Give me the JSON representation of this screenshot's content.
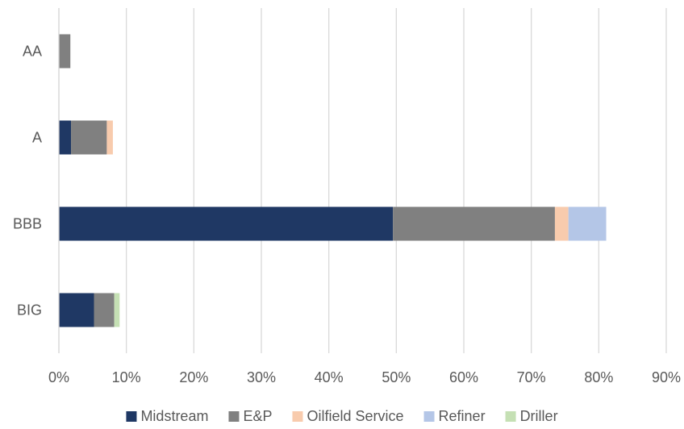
{
  "chart_data": {
    "type": "bar",
    "orientation": "horizontal",
    "stacked": true,
    "title": "",
    "xlabel": "",
    "ylabel": "",
    "categories": [
      "AA",
      "A",
      "BBB",
      "BIG"
    ],
    "xlim": [
      0,
      90
    ],
    "x_ticks": [
      "0%",
      "10%",
      "20%",
      "30%",
      "40%",
      "50%",
      "60%",
      "70%",
      "80%",
      "90%"
    ],
    "grid": "vertical",
    "legend_position": "bottom",
    "series": [
      {
        "name": "Midstream",
        "color": "#1f3864",
        "values": [
          0,
          1.8,
          49.5,
          5.2
        ]
      },
      {
        "name": "E&P",
        "color": "#808080",
        "values": [
          1.7,
          5.3,
          24.0,
          3.0
        ]
      },
      {
        "name": "Oilfield Service",
        "color": "#f8cbad",
        "values": [
          0,
          0.9,
          2.0,
          0
        ]
      },
      {
        "name": "Refiner",
        "color": "#b4c6e7",
        "values": [
          0,
          0,
          5.6,
          0
        ]
      },
      {
        "name": "Driller",
        "color": "#c5e0b4",
        "values": [
          0,
          0,
          0,
          0.8
        ]
      }
    ]
  }
}
